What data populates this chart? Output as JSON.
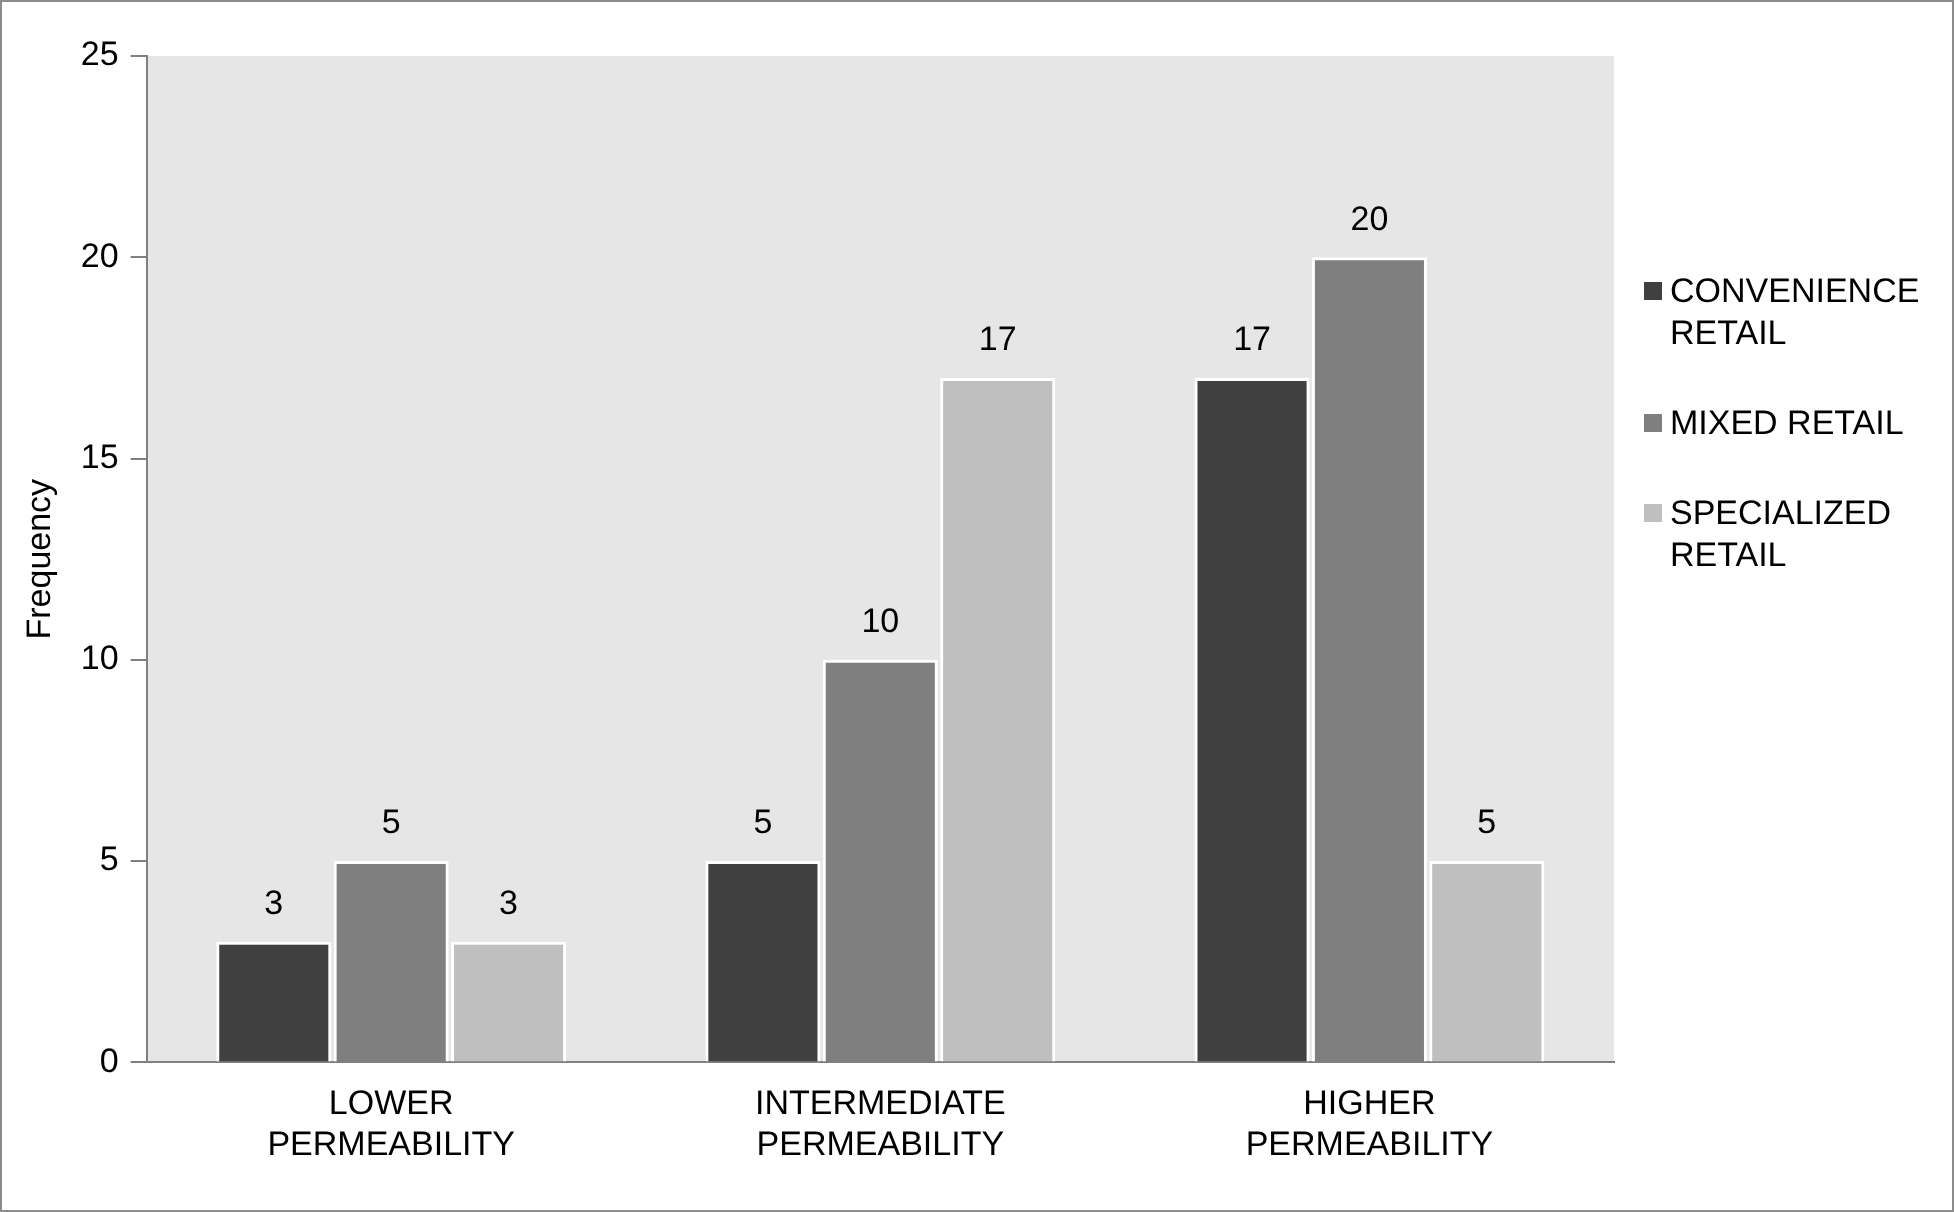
{
  "chart_data": {
    "type": "bar",
    "ylabel": "Frequency",
    "categories": [
      "LOWER PERMEABILITY",
      "INTERMEDIATE PERMEABILITY",
      "HIGHER PERMEABILITY"
    ],
    "series": [
      {
        "name": "CONVENIENCE RETAIL",
        "color": "#404040",
        "values": [
          3,
          5,
          17
        ]
      },
      {
        "name": "MIXED RETAIL",
        "color": "#7f7f7f",
        "values": [
          5,
          10,
          20
        ]
      },
      {
        "name": "SPECIALIZED RETAIL",
        "color": "#bfbfbf",
        "values": [
          3,
          17,
          5
        ]
      }
    ],
    "ylim": [
      0,
      25
    ],
    "yticks": [
      0,
      5,
      10,
      15,
      20,
      25
    ],
    "grid": false,
    "legend": "right",
    "data_labels": true
  }
}
